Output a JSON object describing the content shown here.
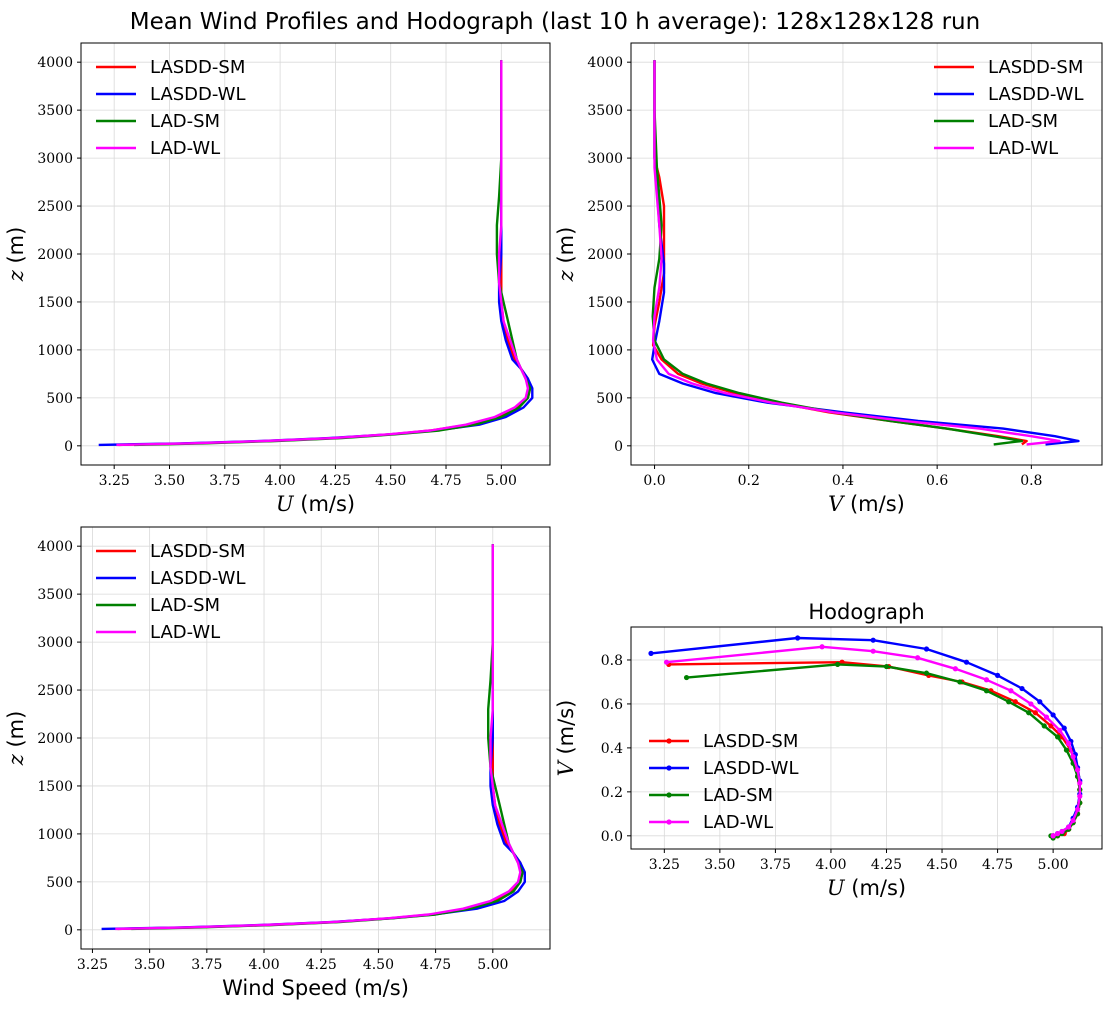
{
  "figure": {
    "title": "Mean Wind Profiles and Hodograph (last 10 h average): 128x128x128 run"
  },
  "colors": {
    "LASDD-SM": "#ff0000",
    "LASDD-WL": "#0000ff",
    "LAD-SM": "#008000",
    "LAD-WL": "#ff00ff"
  },
  "chart_data": [
    {
      "id": "u_profile",
      "type": "line",
      "title": "",
      "xlabel_var": "U",
      "xlabel_unit": " (m/s)",
      "ylabel_var": "z",
      "ylabel_unit": " (m)",
      "xlim": [
        3.1,
        5.22
      ],
      "ylim": [
        -200,
        4200
      ],
      "xticks": [
        "3.25",
        "3.50",
        "3.75",
        "4.00",
        "4.25",
        "4.50",
        "4.75",
        "5.00"
      ],
      "yticks": [
        "0",
        "500",
        "1000",
        "1500",
        "2000",
        "2500",
        "3000",
        "3500",
        "4000"
      ],
      "legend_position": "upper-left",
      "series": [
        {
          "name": "LASDD-SM",
          "x": [
            3.27,
            3.6,
            3.95,
            4.25,
            4.5,
            4.68,
            4.85,
            4.98,
            5.07,
            5.12,
            5.13,
            5.12,
            5.09,
            5.06,
            5.03,
            5.01,
            5.0,
            5.0,
            5.0,
            5.0,
            5.0,
            5.0,
            5.0,
            5.0
          ],
          "y": [
            10,
            25,
            50,
            80,
            120,
            160,
            220,
            300,
            400,
            500,
            600,
            700,
            800,
            900,
            1100,
            1300,
            1500,
            1700,
            2000,
            2300,
            2600,
            3000,
            3500,
            4020
          ]
        },
        {
          "name": "LASDD-WL",
          "x": [
            3.18,
            3.55,
            3.92,
            4.22,
            4.5,
            4.7,
            4.9,
            5.02,
            5.1,
            5.14,
            5.14,
            5.12,
            5.09,
            5.05,
            5.02,
            5.0,
            4.99,
            4.99,
            5.0,
            5.0,
            5.0,
            5.0,
            5.0,
            5.0
          ],
          "y": [
            10,
            25,
            50,
            80,
            120,
            160,
            220,
            300,
            400,
            500,
            600,
            700,
            800,
            900,
            1100,
            1300,
            1500,
            1700,
            2000,
            2300,
            2600,
            3000,
            3500,
            4020
          ]
        },
        {
          "name": "LAD-SM",
          "x": [
            3.34,
            3.65,
            3.98,
            4.28,
            4.52,
            4.72,
            4.88,
            5.0,
            5.08,
            5.12,
            5.13,
            5.11,
            5.09,
            5.07,
            5.05,
            5.03,
            5.01,
            4.99,
            4.98,
            4.98,
            4.99,
            5.0,
            5.0,
            5.0
          ],
          "y": [
            10,
            25,
            50,
            80,
            120,
            160,
            220,
            300,
            400,
            500,
            600,
            700,
            800,
            900,
            1100,
            1300,
            1500,
            1700,
            2000,
            2300,
            2600,
            3000,
            3500,
            4020
          ]
        },
        {
          "name": "LAD-WL",
          "x": [
            3.26,
            3.58,
            3.93,
            4.24,
            4.49,
            4.68,
            4.84,
            4.97,
            5.06,
            5.11,
            5.12,
            5.11,
            5.09,
            5.07,
            5.04,
            5.01,
            5.0,
            4.99,
            4.99,
            5.0,
            5.0,
            5.0,
            5.0,
            5.0
          ],
          "y": [
            10,
            25,
            50,
            80,
            120,
            160,
            220,
            300,
            400,
            500,
            600,
            700,
            800,
            900,
            1100,
            1300,
            1500,
            1700,
            2000,
            2300,
            2600,
            3000,
            3500,
            4020
          ]
        }
      ]
    },
    {
      "id": "v_profile",
      "type": "line",
      "title": "",
      "xlabel_var": "V",
      "xlabel_unit": " (m/s)",
      "ylabel_var": "z",
      "ylabel_unit": " (m)",
      "xlim": [
        -0.05,
        0.95
      ],
      "ylim": [
        -200,
        4200
      ],
      "xticks": [
        "0.0",
        "0.2",
        "0.4",
        "0.6",
        "0.8"
      ],
      "yticks": [
        "0",
        "500",
        "1000",
        "1500",
        "2000",
        "2500",
        "3000",
        "3500",
        "4000"
      ],
      "legend_position": "upper-right",
      "series": [
        {
          "name": "LASDD-SM",
          "x": [
            0.78,
            0.79,
            0.73,
            0.62,
            0.5,
            0.37,
            0.26,
            0.17,
            0.1,
            0.05,
            0.015,
            -0.003,
            0.0,
            0.01,
            0.02,
            0.02,
            0.02,
            0.01,
            0.0,
            0.0,
            0.0
          ],
          "y": [
            15,
            50,
            100,
            180,
            260,
            350,
            450,
            550,
            650,
            750,
            900,
            1050,
            1250,
            1500,
            1800,
            2100,
            2500,
            2800,
            3000,
            3500,
            4020
          ]
        },
        {
          "name": "LASDD-WL",
          "x": [
            0.83,
            0.9,
            0.85,
            0.74,
            0.56,
            0.4,
            0.24,
            0.13,
            0.06,
            0.01,
            -0.005,
            0.0,
            0.01,
            0.02,
            0.02,
            0.01,
            0.005,
            0.0,
            0.0,
            0.0
          ],
          "y": [
            15,
            50,
            100,
            180,
            260,
            350,
            450,
            550,
            650,
            750,
            900,
            1050,
            1300,
            1600,
            1900,
            2300,
            2700,
            3000,
            3500,
            4020
          ]
        },
        {
          "name": "LAD-SM",
          "x": [
            0.72,
            0.78,
            0.72,
            0.62,
            0.5,
            0.38,
            0.27,
            0.18,
            0.11,
            0.06,
            0.02,
            0.0,
            -0.004,
            0.0,
            0.01,
            0.015,
            0.01,
            0.005,
            0.0,
            0.0
          ],
          "y": [
            15,
            50,
            100,
            180,
            260,
            350,
            450,
            550,
            650,
            750,
            900,
            1100,
            1350,
            1650,
            1950,
            2300,
            2600,
            2900,
            3500,
            4020
          ]
        },
        {
          "name": "LAD-WL",
          "x": [
            0.79,
            0.86,
            0.8,
            0.69,
            0.53,
            0.38,
            0.25,
            0.15,
            0.08,
            0.03,
            0.005,
            -0.003,
            0.0,
            0.01,
            0.015,
            0.01,
            0.005,
            0.0,
            0.0,
            0.0
          ],
          "y": [
            15,
            50,
            100,
            180,
            260,
            350,
            450,
            550,
            650,
            750,
            900,
            1100,
            1350,
            1650,
            1950,
            2300,
            2600,
            2900,
            3500,
            4020
          ]
        }
      ]
    },
    {
      "id": "speed_profile",
      "type": "line",
      "title": "",
      "xlabel_var": "",
      "xlabel_unit": "Wind Speed (m/s)",
      "ylabel_var": "z",
      "ylabel_unit": " (m)",
      "xlim": [
        3.2,
        5.25
      ],
      "ylim": [
        -200,
        4200
      ],
      "xticks": [
        "3.25",
        "3.50",
        "3.75",
        "4.00",
        "4.25",
        "4.50",
        "4.75",
        "5.00"
      ],
      "yticks": [
        "0",
        "500",
        "1000",
        "1500",
        "2000",
        "2500",
        "3000",
        "3500",
        "4000"
      ],
      "legend_position": "upper-left",
      "series": [
        {
          "name": "LASDD-SM",
          "x": [
            3.36,
            3.68,
            4.02,
            4.31,
            4.55,
            4.73,
            4.89,
            5.01,
            5.08,
            5.12,
            5.13,
            5.12,
            5.09,
            5.06,
            5.03,
            5.01,
            5.0,
            5.0,
            5.0,
            5.0,
            5.0,
            5.0,
            5.0,
            5.0
          ],
          "y": [
            10,
            25,
            50,
            80,
            120,
            160,
            220,
            300,
            400,
            500,
            600,
            700,
            800,
            900,
            1100,
            1300,
            1500,
            1700,
            2000,
            2300,
            2600,
            3000,
            3500,
            4020
          ]
        },
        {
          "name": "LASDD-WL",
          "x": [
            3.29,
            3.64,
            3.99,
            4.29,
            4.55,
            4.74,
            4.93,
            5.05,
            5.11,
            5.14,
            5.14,
            5.12,
            5.09,
            5.05,
            5.02,
            5.0,
            4.99,
            4.99,
            5.0,
            5.0,
            5.0,
            5.0,
            5.0,
            5.0
          ],
          "y": [
            10,
            25,
            50,
            80,
            120,
            160,
            220,
            300,
            400,
            500,
            600,
            700,
            800,
            900,
            1100,
            1300,
            1500,
            1700,
            2000,
            2300,
            2600,
            3000,
            3500,
            4020
          ]
        },
        {
          "name": "LAD-SM",
          "x": [
            3.42,
            3.72,
            4.04,
            4.33,
            4.56,
            4.75,
            4.9,
            5.02,
            5.09,
            5.12,
            5.13,
            5.11,
            5.09,
            5.07,
            5.05,
            5.03,
            5.01,
            4.99,
            4.98,
            4.98,
            4.99,
            5.0,
            5.0,
            5.0
          ],
          "y": [
            10,
            25,
            50,
            80,
            120,
            160,
            220,
            300,
            400,
            500,
            600,
            700,
            800,
            900,
            1100,
            1300,
            1500,
            1700,
            2000,
            2300,
            2600,
            3000,
            3500,
            4020
          ]
        },
        {
          "name": "LAD-WL",
          "x": [
            3.35,
            3.66,
            4.0,
            4.3,
            4.54,
            4.72,
            4.87,
            4.99,
            5.07,
            5.11,
            5.12,
            5.11,
            5.09,
            5.07,
            5.04,
            5.01,
            5.0,
            4.99,
            4.99,
            5.0,
            5.0,
            5.0,
            5.0,
            5.0
          ],
          "y": [
            10,
            25,
            50,
            80,
            120,
            160,
            220,
            300,
            400,
            500,
            600,
            700,
            800,
            900,
            1100,
            1300,
            1500,
            1700,
            2000,
            2300,
            2600,
            3000,
            3500,
            4020
          ]
        }
      ]
    },
    {
      "id": "hodograph",
      "type": "line",
      "title": "Hodograph",
      "xlabel_var": "U",
      "xlabel_unit": " (m/s)",
      "ylabel_var": "V",
      "ylabel_unit": " (m/s)",
      "xlim": [
        3.1,
        5.22
      ],
      "ylim": [
        -0.06,
        0.95
      ],
      "xticks": [
        "3.25",
        "3.50",
        "3.75",
        "4.00",
        "4.25",
        "4.50",
        "4.75",
        "5.00"
      ],
      "yticks": [
        "0.0",
        "0.2",
        "0.4",
        "0.6",
        "0.8"
      ],
      "legend_position": "center-left",
      "markers": true,
      "series": [
        {
          "name": "LASDD-SM",
          "x": [
            3.27,
            4.05,
            4.26,
            4.44,
            4.59,
            4.72,
            4.83,
            4.92,
            4.99,
            5.04,
            5.08,
            5.1,
            5.11,
            5.12,
            5.12,
            5.11,
            5.09,
            5.07,
            5.05,
            5.02,
            5.0,
            5.0
          ],
          "y": [
            0.78,
            0.79,
            0.77,
            0.73,
            0.7,
            0.66,
            0.61,
            0.56,
            0.5,
            0.45,
            0.39,
            0.33,
            0.27,
            0.21,
            0.15,
            0.1,
            0.06,
            0.03,
            0.01,
            0.0,
            0.0,
            0.0
          ]
        },
        {
          "name": "LASDD-WL",
          "x": [
            3.19,
            3.85,
            4.19,
            4.43,
            4.61,
            4.75,
            4.86,
            4.94,
            5.0,
            5.05,
            5.08,
            5.1,
            5.11,
            5.12,
            5.12,
            5.11,
            5.09,
            5.07,
            5.04,
            5.02,
            5.0,
            5.0
          ],
          "y": [
            0.83,
            0.9,
            0.89,
            0.85,
            0.79,
            0.73,
            0.67,
            0.61,
            0.55,
            0.49,
            0.43,
            0.37,
            0.31,
            0.25,
            0.19,
            0.13,
            0.08,
            0.04,
            0.02,
            0.01,
            0.0,
            0.0
          ]
        },
        {
          "name": "LAD-SM",
          "x": [
            3.35,
            4.03,
            4.25,
            4.43,
            4.58,
            4.7,
            4.8,
            4.89,
            4.96,
            5.02,
            5.06,
            5.09,
            5.11,
            5.12,
            5.12,
            5.11,
            5.09,
            5.07,
            5.04,
            5.02,
            5.0,
            4.99
          ],
          "y": [
            0.72,
            0.78,
            0.77,
            0.74,
            0.7,
            0.66,
            0.61,
            0.56,
            0.5,
            0.45,
            0.39,
            0.33,
            0.27,
            0.21,
            0.15,
            0.1,
            0.06,
            0.03,
            0.01,
            0.0,
            -0.01,
            0.0
          ]
        },
        {
          "name": "LAD-WL",
          "x": [
            3.26,
            3.96,
            4.19,
            4.39,
            4.56,
            4.7,
            4.81,
            4.9,
            4.97,
            5.03,
            5.07,
            5.09,
            5.11,
            5.12,
            5.12,
            5.11,
            5.09,
            5.07,
            5.04,
            5.02,
            5.0,
            5.0
          ],
          "y": [
            0.79,
            0.86,
            0.84,
            0.81,
            0.76,
            0.71,
            0.66,
            0.6,
            0.54,
            0.48,
            0.42,
            0.36,
            0.3,
            0.24,
            0.18,
            0.12,
            0.07,
            0.04,
            0.02,
            0.01,
            0.0,
            0.0
          ]
        }
      ]
    }
  ]
}
